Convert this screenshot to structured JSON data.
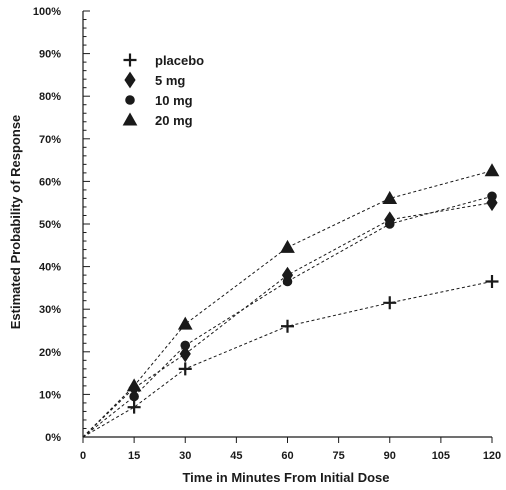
{
  "chart_data": {
    "type": "line",
    "xlabel": "Time in Minutes From Initial Dose",
    "ylabel": "Estimated Probability of Response",
    "x": [
      0,
      15,
      30,
      60,
      90,
      120
    ],
    "xticks": [
      "0",
      "15",
      "30",
      "45",
      "60",
      "75",
      "90",
      "105",
      "120"
    ],
    "xtick_values": [
      0,
      15,
      30,
      45,
      60,
      75,
      90,
      105,
      120
    ],
    "yticks": [
      "0%",
      "10%",
      "20%",
      "30%",
      "40%",
      "50%",
      "60%",
      "70%",
      "80%",
      "90%",
      "100%"
    ],
    "ytick_values": [
      0,
      10,
      20,
      30,
      40,
      50,
      60,
      70,
      80,
      90,
      100
    ],
    "xlim": [
      0,
      120
    ],
    "ylim": [
      0,
      100
    ],
    "grid": false,
    "legend_position": "top-left",
    "series": [
      {
        "name": "placebo",
        "marker": "plus",
        "values": [
          0,
          7,
          16,
          26,
          31.5,
          36.5
        ]
      },
      {
        "name": "5 mg",
        "marker": "diamond",
        "values": [
          0,
          11.5,
          19.5,
          38,
          51,
          55
        ]
      },
      {
        "name": "10 mg",
        "marker": "circle",
        "values": [
          0,
          9.5,
          21.5,
          36.5,
          50,
          56.5
        ]
      },
      {
        "name": "20 mg",
        "marker": "triangle",
        "values": [
          0,
          12,
          26.5,
          44.5,
          56,
          62.5
        ]
      }
    ]
  }
}
